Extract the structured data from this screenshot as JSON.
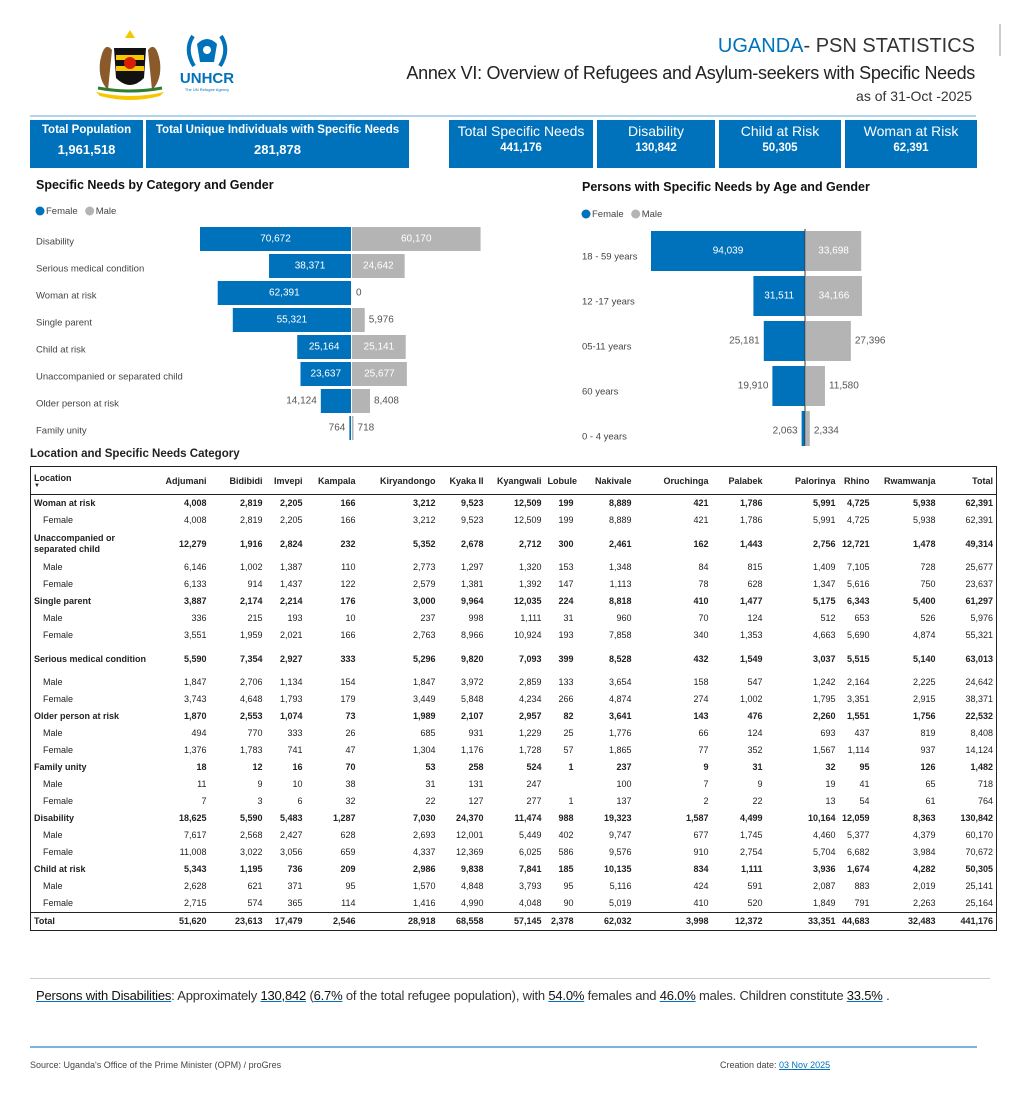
{
  "header": {
    "country": "UGANDA",
    "label": "- PSN STATISTICS",
    "title": "Annex VI: Overview of Refugees and Asylum-seekers with Specific Needs",
    "date": "as of 31-Oct -2025"
  },
  "logo": {
    "name": "UNHCR",
    "tagline": "The UN Refugee Agency"
  },
  "kpis": [
    {
      "label": "Total Population",
      "value": "1,961,518"
    },
    {
      "label": "Total Unique Individuals with Specific Needs",
      "value": "281,878"
    },
    {
      "label": "Total Specific Needs",
      "value": "441,176"
    },
    {
      "label": "Disability",
      "value": "130,842"
    },
    {
      "label": "Child at Risk",
      "value": "50,305"
    },
    {
      "label": "Woman at Risk",
      "value": "62,391"
    }
  ],
  "chart_data": [
    {
      "type": "bar",
      "orientation": "horizontal",
      "layout": "diverging",
      "title": "Specific Needs by Category and Gender",
      "categories": [
        "Disability",
        "Serious medical condition",
        "Woman at risk",
        "Single parent",
        "Child at risk",
        "Unaccompanied or separated child",
        "Older person at risk",
        "Family unity"
      ],
      "series": [
        {
          "name": "Female",
          "color": "#0072bc",
          "values": [
            70672,
            38371,
            62391,
            55321,
            25164,
            23637,
            14124,
            764
          ],
          "value_labels": [
            "70,672",
            "38,371",
            "62,391",
            "55,321",
            "25,164",
            "23,637",
            "14,124",
            "764"
          ]
        },
        {
          "name": "Male",
          "color": "#b4b4b4",
          "values": [
            60170,
            24642,
            0,
            5976,
            25141,
            25677,
            8408,
            718
          ],
          "value_labels": [
            "60,170",
            "24,642",
            "0",
            "5,976",
            "25,141",
            "25,677",
            "8,408",
            "718"
          ]
        }
      ],
      "legend": "top-left"
    },
    {
      "type": "bar",
      "orientation": "horizontal",
      "layout": "diverging",
      "title": "Persons with Specific Needs by Age and Gender",
      "categories": [
        "18 - 59 years",
        "12 -17 years",
        "05-11 years",
        "60 years",
        "0 - 4 years"
      ],
      "series": [
        {
          "name": "Female",
          "color": "#0072bc",
          "values": [
            94039,
            31511,
            25181,
            19910,
            2063
          ],
          "value_labels": [
            "94,039",
            "31,511",
            "25,181",
            "19,910",
            "2,063"
          ]
        },
        {
          "name": "Male",
          "color": "#b4b4b4",
          "values": [
            33698,
            34166,
            27396,
            11580,
            2334
          ],
          "value_labels": [
            "33,698",
            "34,166",
            "27,396",
            "11,580",
            "2,334"
          ]
        }
      ],
      "legend": "top-left"
    }
  ],
  "table": {
    "title": "Location and Specific Needs Category",
    "columns": [
      "Location",
      "Adjumani",
      "Bidibidi",
      "Imvepi",
      "Kampala",
      "Kiryandongo",
      "Kyaka II",
      "Kyangwali",
      "Lobule",
      "Nakivale",
      "Oruchinga",
      "Palabek",
      "Palorinya",
      "Rhino",
      "Rwamwanja",
      "Total"
    ],
    "rows": [
      {
        "bold": true,
        "label": "Woman at risk",
        "values": [
          "4,008",
          "2,819",
          "2,205",
          "166",
          "3,212",
          "9,523",
          "12,509",
          "199",
          "8,889",
          "421",
          "1,786",
          "5,991",
          "4,725",
          "5,938",
          "62,391"
        ]
      },
      {
        "bold": false,
        "label": "Female",
        "values": [
          "4,008",
          "2,819",
          "2,205",
          "166",
          "3,212",
          "9,523",
          "12,509",
          "199",
          "8,889",
          "421",
          "1,786",
          "5,991",
          "4,725",
          "5,938",
          "62,391"
        ]
      },
      {
        "bold": true,
        "label": "Unaccompanied or separated child",
        "values": [
          "12,279",
          "1,916",
          "2,824",
          "232",
          "5,352",
          "2,678",
          "2,712",
          "300",
          "2,461",
          "162",
          "1,443",
          "2,756",
          "12,721",
          "1,478",
          "49,314"
        ]
      },
      {
        "bold": false,
        "label": "Male",
        "values": [
          "6,146",
          "1,002",
          "1,387",
          "110",
          "2,773",
          "1,297",
          "1,320",
          "153",
          "1,348",
          "84",
          "815",
          "1,409",
          "7,105",
          "728",
          "25,677"
        ]
      },
      {
        "bold": false,
        "label": "Female",
        "values": [
          "6,133",
          "914",
          "1,437",
          "122",
          "2,579",
          "1,381",
          "1,392",
          "147",
          "1,113",
          "78",
          "628",
          "1,347",
          "5,616",
          "750",
          "23,637"
        ]
      },
      {
        "bold": true,
        "label": "Single parent",
        "values": [
          "3,887",
          "2,174",
          "2,214",
          "176",
          "3,000",
          "9,964",
          "12,035",
          "224",
          "8,818",
          "410",
          "1,477",
          "5,175",
          "6,343",
          "5,400",
          "61,297"
        ]
      },
      {
        "bold": false,
        "label": "Male",
        "values": [
          "336",
          "215",
          "193",
          "10",
          "237",
          "998",
          "1,111",
          "31",
          "960",
          "70",
          "124",
          "512",
          "653",
          "526",
          "5,976"
        ]
      },
      {
        "bold": false,
        "label": "Female",
        "values": [
          "3,551",
          "1,959",
          "2,021",
          "166",
          "2,763",
          "8,966",
          "10,924",
          "193",
          "7,858",
          "340",
          "1,353",
          "4,663",
          "5,690",
          "4,874",
          "55,321"
        ]
      },
      {
        "bold": true,
        "label": "Serious medical condition",
        "values": [
          "5,590",
          "7,354",
          "2,927",
          "333",
          "5,296",
          "9,820",
          "7,093",
          "399",
          "8,528",
          "432",
          "1,549",
          "3,037",
          "5,515",
          "5,140",
          "63,013"
        ]
      },
      {
        "bold": false,
        "label": "Male",
        "values": [
          "1,847",
          "2,706",
          "1,134",
          "154",
          "1,847",
          "3,972",
          "2,859",
          "133",
          "3,654",
          "158",
          "547",
          "1,242",
          "2,164",
          "2,225",
          "24,642"
        ]
      },
      {
        "bold": false,
        "label": "Female",
        "values": [
          "3,743",
          "4,648",
          "1,793",
          "179",
          "3,449",
          "5,848",
          "4,234",
          "266",
          "4,874",
          "274",
          "1,002",
          "1,795",
          "3,351",
          "2,915",
          "38,371"
        ]
      },
      {
        "bold": true,
        "label": "Older person at risk",
        "values": [
          "1,870",
          "2,553",
          "1,074",
          "73",
          "1,989",
          "2,107",
          "2,957",
          "82",
          "3,641",
          "143",
          "476",
          "2,260",
          "1,551",
          "1,756",
          "22,532"
        ]
      },
      {
        "bold": false,
        "label": "Male",
        "values": [
          "494",
          "770",
          "333",
          "26",
          "685",
          "931",
          "1,229",
          "25",
          "1,776",
          "66",
          "124",
          "693",
          "437",
          "819",
          "8,408"
        ]
      },
      {
        "bold": false,
        "label": "Female",
        "values": [
          "1,376",
          "1,783",
          "741",
          "47",
          "1,304",
          "1,176",
          "1,728",
          "57",
          "1,865",
          "77",
          "352",
          "1,567",
          "1,114",
          "937",
          "14,124"
        ]
      },
      {
        "bold": true,
        "label": "Family unity",
        "values": [
          "18",
          "12",
          "16",
          "70",
          "53",
          "258",
          "524",
          "1",
          "237",
          "9",
          "31",
          "32",
          "95",
          "126",
          "1,482"
        ]
      },
      {
        "bold": false,
        "label": "Male",
        "values": [
          "11",
          "9",
          "10",
          "38",
          "31",
          "131",
          "247",
          null,
          "100",
          "7",
          "9",
          "19",
          "41",
          "65",
          "718"
        ]
      },
      {
        "bold": false,
        "label": "Female",
        "values": [
          "7",
          "3",
          "6",
          "32",
          "22",
          "127",
          "277",
          "1",
          "137",
          "2",
          "22",
          "13",
          "54",
          "61",
          "764"
        ]
      },
      {
        "bold": true,
        "label": "Disability",
        "values": [
          "18,625",
          "5,590",
          "5,483",
          "1,287",
          "7,030",
          "24,370",
          "11,474",
          "988",
          "19,323",
          "1,587",
          "4,499",
          "10,164",
          "12,059",
          "8,363",
          "130,842"
        ]
      },
      {
        "bold": false,
        "label": "Male",
        "values": [
          "7,617",
          "2,568",
          "2,427",
          "628",
          "2,693",
          "12,001",
          "5,449",
          "402",
          "9,747",
          "677",
          "1,745",
          "4,460",
          "5,377",
          "4,379",
          "60,170"
        ]
      },
      {
        "bold": false,
        "label": "Female",
        "values": [
          "11,008",
          "3,022",
          "3,056",
          "659",
          "4,337",
          "12,369",
          "6,025",
          "586",
          "9,576",
          "910",
          "2,754",
          "5,704",
          "6,682",
          "3,984",
          "70,672"
        ]
      },
      {
        "bold": true,
        "label": "Child at risk",
        "values": [
          "5,343",
          "1,195",
          "736",
          "209",
          "2,986",
          "9,838",
          "7,841",
          "185",
          "10,135",
          "834",
          "1,111",
          "3,936",
          "1,674",
          "4,282",
          "50,305"
        ]
      },
      {
        "bold": false,
        "label": "Male",
        "values": [
          "2,628",
          "621",
          "371",
          "95",
          "1,570",
          "4,848",
          "3,793",
          "95",
          "5,116",
          "424",
          "591",
          "2,087",
          "883",
          "2,019",
          "25,141"
        ]
      },
      {
        "bold": false,
        "label": "Female",
        "values": [
          "2,715",
          "574",
          "365",
          "114",
          "1,416",
          "4,990",
          "4,048",
          "90",
          "5,019",
          "410",
          "520",
          "1,849",
          "791",
          "2,263",
          "25,164"
        ]
      },
      {
        "bold": true,
        "label": "Total",
        "values": [
          "51,620",
          "23,613",
          "17,479",
          "2,546",
          "28,918",
          "68,558",
          "57,145",
          "2,378",
          "62,032",
          "3,998",
          "12,372",
          "33,351",
          "44,683",
          "32,483",
          "441,176"
        ]
      }
    ]
  },
  "summary": [
    {
      "style": "label",
      "text": "Persons with Disabilities"
    },
    {
      "style": "text",
      "text": ": Approximately "
    },
    {
      "style": "value",
      "text": "130,842"
    },
    {
      "style": "text",
      "text": " ("
    },
    {
      "style": "value",
      "text": "6.7%"
    },
    {
      "style": "text",
      "text": "  of the total refugee population), with "
    },
    {
      "style": "value",
      "text": "54.0%"
    },
    {
      "style": "text",
      "text": " females and "
    },
    {
      "style": "value",
      "text": "46.0%"
    },
    {
      "style": "text",
      "text": " males. Children constitute "
    },
    {
      "style": "value",
      "text": "33.5%"
    },
    {
      "style": "text",
      "text": " ."
    }
  ],
  "footer": {
    "source": "Source: Uganda's Office of the Prime Minister (OPM) / proGres",
    "created_label": "Creation date: ",
    "created": "03 Nov 2025"
  }
}
